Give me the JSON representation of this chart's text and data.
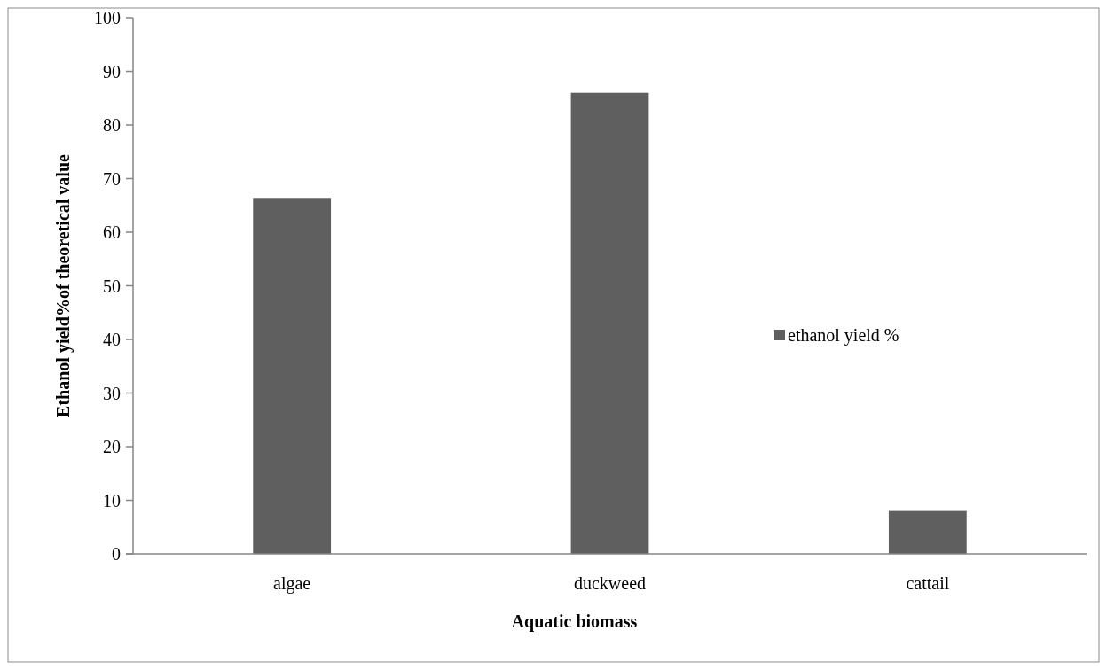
{
  "chart_data": {
    "type": "bar",
    "xlabel": "Aquatic biomass",
    "ylabel": "Ethanol yield%of theoretical value",
    "categories": [
      "algae",
      "duckweed",
      "cattail"
    ],
    "series": [
      {
        "name": "ethanol yield %",
        "color": "#5f5f5f",
        "values": [
          66.4,
          86,
          8
        ]
      }
    ],
    "ylim": [
      0,
      100
    ],
    "yticks": [
      0,
      10,
      20,
      30,
      40,
      50,
      60,
      70,
      80,
      90,
      100
    ],
    "legend": "right",
    "grid": false
  }
}
